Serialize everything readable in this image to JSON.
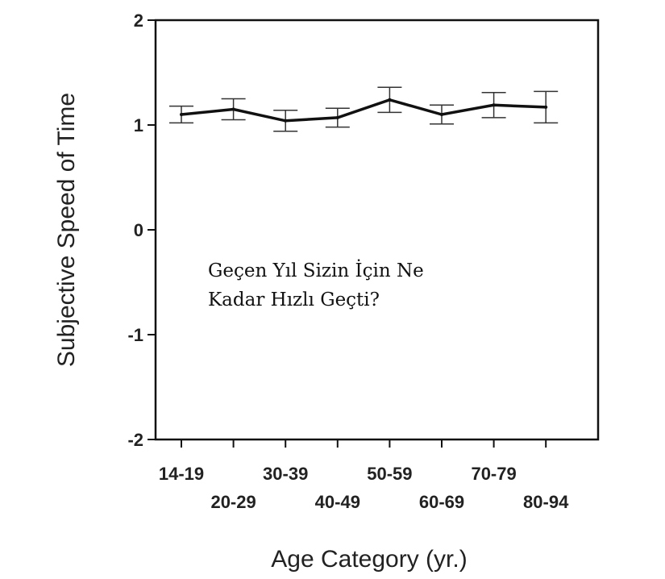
{
  "chart_data": {
    "type": "line",
    "title": "",
    "xlabel": "Age Category (yr.)",
    "ylabel": "Subjective Speed of Time",
    "ylim": [
      -2,
      2
    ],
    "yticks": [
      "2",
      "1",
      "0",
      "-1",
      "-2"
    ],
    "categories": [
      "14-19",
      "20-29",
      "30-39",
      "40-49",
      "50-59",
      "60-69",
      "70-79",
      "80-94"
    ],
    "values": [
      1.1,
      1.15,
      1.04,
      1.07,
      1.24,
      1.1,
      1.19,
      1.17
    ],
    "error": [
      0.08,
      0.1,
      0.1,
      0.09,
      0.12,
      0.09,
      0.12,
      0.15
    ],
    "grid": false,
    "line_color": "#111111"
  },
  "overlay_text": {
    "line1": "Geçen Yıl Sizin İçin Ne",
    "line2": "Kadar Hızlı Geçti?"
  }
}
